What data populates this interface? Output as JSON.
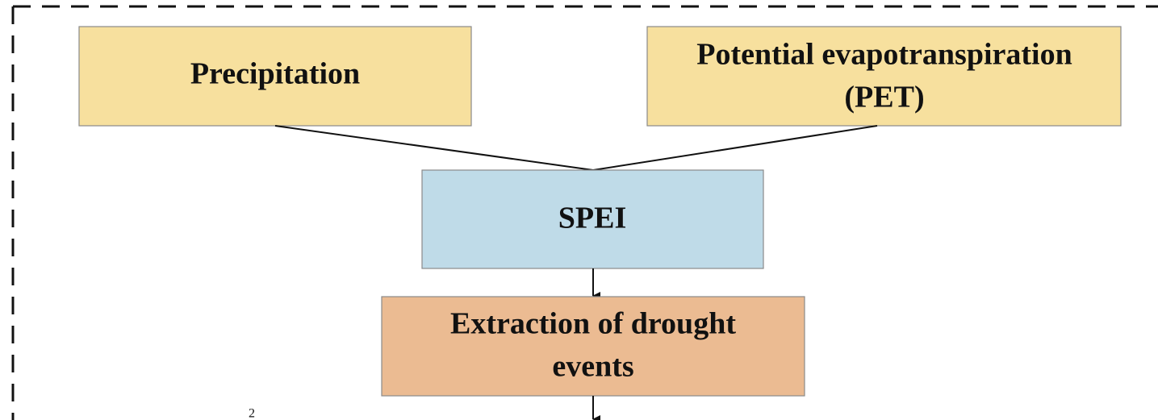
{
  "nodes": [
    {
      "lines": [
        "Precipitation"
      ]
    },
    {
      "lines": [
        "Potential evapotranspiration",
        "(PET)"
      ]
    },
    {
      "lines": [
        "SPEI"
      ]
    },
    {
      "lines": [
        "Extraction of drought",
        "events"
      ]
    }
  ],
  "fragment": "2"
}
